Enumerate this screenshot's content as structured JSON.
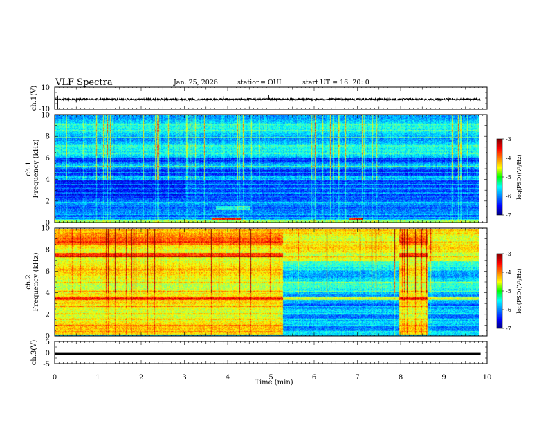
{
  "header": {
    "title": "VLF Spectra",
    "date": "Jan. 25, 2026",
    "station": "station= OUI",
    "start": "start UT =  16: 20: 0"
  },
  "chart_data": [
    {
      "id": "ch1_waveform",
      "type": "line",
      "ylabel": "ch.1(V)",
      "ylim": [
        -10,
        10
      ],
      "yticks": [
        "10",
        "-10"
      ],
      "baseline": 0,
      "description": "noisy waveform near 0 V with spikes at about 0.07, 0.68 and 4.95 min"
    },
    {
      "id": "ch1_spectrogram",
      "type": "heatmap",
      "ylabel": "ch.1\nFrequency (kHz)",
      "ylim": [
        0,
        10
      ],
      "yticks": [
        "0",
        "2",
        "4",
        "6",
        "8",
        "10"
      ],
      "colorbar": {
        "label": "log(PSD)(V²/Hz)",
        "ticks": [
          "-3",
          "-4",
          "-5",
          "-6",
          "-7"
        ],
        "range": [
          -7,
          -3
        ]
      },
      "bands_kHz": [
        0.3,
        0.5,
        0.8,
        1.3,
        1.9,
        2.5,
        2.8,
        3.2,
        3.6,
        4.0,
        4.3,
        4.7,
        5.3,
        5.9,
        6.5,
        7.2,
        8.0,
        8.6,
        9.2
      ]
    },
    {
      "id": "ch2_spectrogram",
      "type": "heatmap",
      "ylabel": "ch.2\nFrequency (kHz)",
      "ylim": [
        0,
        10
      ],
      "yticks": [
        "0",
        "2",
        "4",
        "6",
        "8",
        "10"
      ],
      "colorbar": {
        "label": "log(PSD)(V²/Hz)",
        "ticks": [
          "-3",
          "-4",
          "-5",
          "-6",
          "-7"
        ],
        "range": [
          -7,
          -3
        ]
      },
      "segments_min": [
        [
          0,
          5.25,
          "high"
        ],
        [
          5.25,
          7.95,
          "low"
        ],
        [
          7.95,
          8.6,
          "high"
        ],
        [
          8.6,
          9.85,
          "low"
        ]
      ],
      "bands_kHz": [
        0.4,
        1.0,
        1.6,
        2.1,
        2.8,
        3.5,
        4.2,
        5.0,
        6.2,
        7.4,
        8.8
      ]
    },
    {
      "id": "ch3_waveform",
      "type": "line",
      "ylabel": "ch.3(V)",
      "ylim": [
        -5,
        5
      ],
      "yticks": [
        "5",
        "0",
        "-5"
      ],
      "level_V": -0.5
    }
  ],
  "time_axis": {
    "xlabel": "Time (min)",
    "xlim": [
      0,
      10
    ],
    "ticks": [
      "0",
      "1",
      "2",
      "3",
      "4",
      "5",
      "6",
      "7",
      "8",
      "9",
      "10"
    ],
    "data_end_min": 9.85
  }
}
